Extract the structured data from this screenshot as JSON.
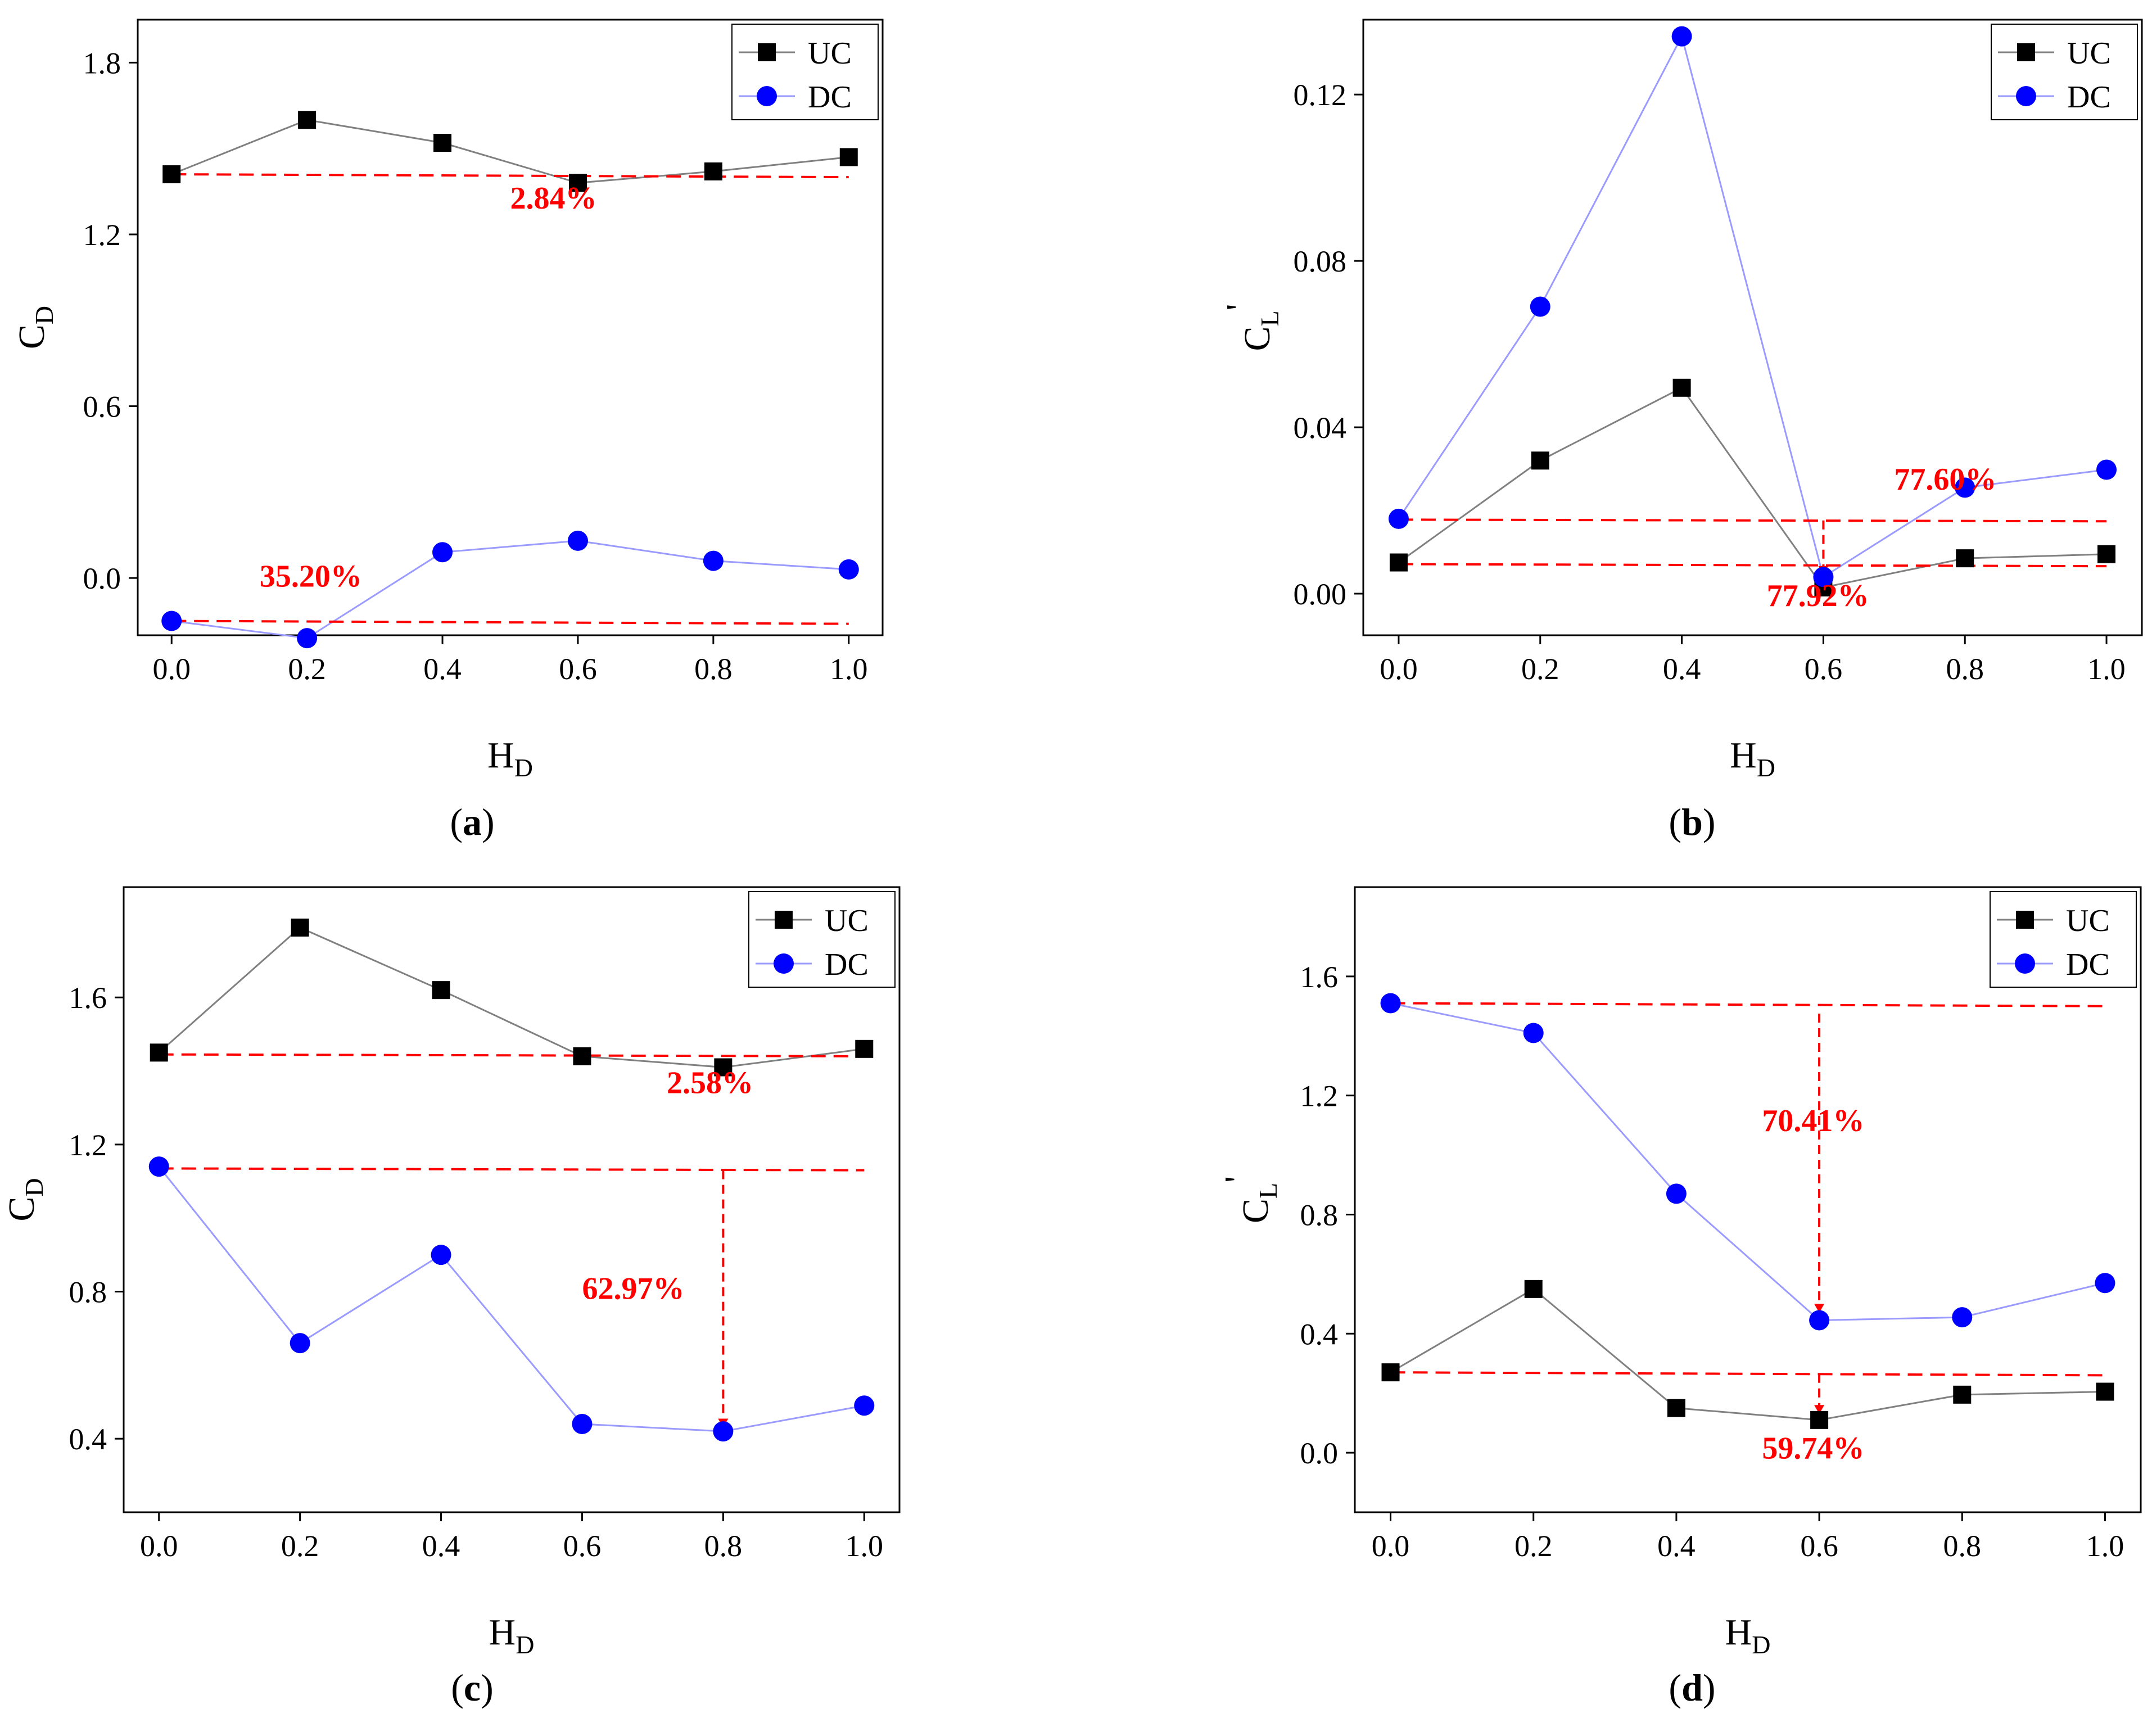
{
  "figure": {
    "panels": [
      "a",
      "b",
      "c",
      "d"
    ]
  },
  "colors": {
    "uc_series": "#000000",
    "uc_line": "#808080",
    "dc_series": "#0000ff",
    "dc_line": "#9a9aff",
    "annotation": "#ff0000"
  },
  "chart_data": [
    {
      "id": "a",
      "type": "line",
      "caption_letter": "a",
      "xlabel_main": "H",
      "xlabel_sub": "D",
      "ylabel_main": "C",
      "ylabel_sub": "D",
      "ylabel_prime": "",
      "xlim": [
        -0.05,
        1.05
      ],
      "ylim": [
        -0.2,
        1.95
      ],
      "x": [
        0.0,
        0.2,
        0.4,
        0.6,
        0.8,
        1.0
      ],
      "x_ticks": [
        0.0,
        0.2,
        0.4,
        0.6,
        0.8,
        1.0
      ],
      "x_tick_labels": [
        "0.0",
        "0.2",
        "0.4",
        "0.6",
        "0.8",
        "1.0"
      ],
      "y_ticks": [
        0.0,
        0.6,
        1.2,
        1.8
      ],
      "y_tick_labels": [
        "0.0",
        "0.6",
        "1.2",
        "1.8"
      ],
      "legend_position": "top-right",
      "series": [
        {
          "name": "UC",
          "marker": "square",
          "values": [
            1.41,
            1.6,
            1.52,
            1.38,
            1.42,
            1.47
          ]
        },
        {
          "name": "DC",
          "marker": "circle",
          "values": [
            -0.15,
            -0.21,
            0.09,
            0.13,
            0.06,
            0.03
          ]
        }
      ],
      "reference_lines": [
        {
          "from": [
            0.0,
            1.41
          ],
          "to": [
            1.0,
            1.4
          ]
        },
        {
          "from": [
            0.0,
            -0.15
          ],
          "to": [
            1.0,
            -0.16
          ]
        }
      ],
      "drop_lines": [],
      "annotations": [
        {
          "text": "2.84%",
          "x": 0.5,
          "y": 1.29
        },
        {
          "text": "35.20%",
          "x": 0.13,
          "y": -0.03
        }
      ]
    },
    {
      "id": "b",
      "type": "line",
      "caption_letter": "b",
      "xlabel_main": "H",
      "xlabel_sub": "D",
      "ylabel_main": "C",
      "ylabel_sub": "L",
      "ylabel_prime": "'",
      "xlim": [
        -0.05,
        1.05
      ],
      "ylim": [
        -0.01,
        0.138
      ],
      "x": [
        0.0,
        0.2,
        0.4,
        0.6,
        0.8,
        1.0
      ],
      "x_ticks": [
        0.0,
        0.2,
        0.4,
        0.6,
        0.8,
        1.0
      ],
      "x_tick_labels": [
        "0.0",
        "0.2",
        "0.4",
        "0.6",
        "0.8",
        "1.0"
      ],
      "y_ticks": [
        0.0,
        0.04,
        0.08,
        0.12
      ],
      "y_tick_labels": [
        "0.00",
        "0.04",
        "0.08",
        "0.12"
      ],
      "legend_position": "top-right",
      "series": [
        {
          "name": "UC",
          "marker": "square",
          "values": [
            0.0075,
            0.032,
            0.0495,
            0.0015,
            0.0085,
            0.0095
          ]
        },
        {
          "name": "DC",
          "marker": "circle",
          "values": [
            0.018,
            0.069,
            0.134,
            0.004,
            0.0255,
            0.0298
          ]
        }
      ],
      "reference_lines": [
        {
          "from": [
            0.0,
            0.0178
          ],
          "to": [
            1.0,
            0.0174
          ]
        },
        {
          "from": [
            0.0,
            0.0071
          ],
          "to": [
            1.0,
            0.0066
          ]
        }
      ],
      "drop_lines": [
        {
          "from": [
            0.6,
            0.0176
          ],
          "to": [
            0.6,
            0.0045
          ]
        }
      ],
      "annotations": [
        {
          "text": "77.60%",
          "x": 0.7,
          "y": 0.025
        },
        {
          "text": "77.92%",
          "x": 0.52,
          "y": -0.003
        }
      ]
    },
    {
      "id": "c",
      "type": "line",
      "caption_letter": "c",
      "xlabel_main": "H",
      "xlabel_sub": "D",
      "ylabel_main": "C",
      "ylabel_sub": "D",
      "ylabel_prime": "",
      "xlim": [
        -0.05,
        1.05
      ],
      "ylim": [
        0.2,
        1.9
      ],
      "x": [
        0.0,
        0.2,
        0.4,
        0.6,
        0.8,
        1.0
      ],
      "x_ticks": [
        0.0,
        0.2,
        0.4,
        0.6,
        0.8,
        1.0
      ],
      "x_tick_labels": [
        "0.0",
        "0.2",
        "0.4",
        "0.6",
        "0.8",
        "1.0"
      ],
      "y_ticks": [
        0.4,
        0.8,
        1.2,
        1.6
      ],
      "y_tick_labels": [
        "0.4",
        "0.8",
        "1.2",
        "1.6"
      ],
      "legend_position": "top-right",
      "series": [
        {
          "name": "UC",
          "marker": "square",
          "values": [
            1.45,
            1.79,
            1.62,
            1.44,
            1.41,
            1.46
          ]
        },
        {
          "name": "DC",
          "marker": "circle",
          "values": [
            1.14,
            0.66,
            0.9,
            0.44,
            0.42,
            0.49
          ]
        }
      ],
      "reference_lines": [
        {
          "from": [
            0.0,
            1.445
          ],
          "to": [
            1.0,
            1.44
          ]
        },
        {
          "from": [
            0.0,
            1.135
          ],
          "to": [
            1.0,
            1.13
          ]
        }
      ],
      "drop_lines": [
        {
          "from": [
            0.8,
            1.13
          ],
          "to": [
            0.8,
            0.43
          ]
        }
      ],
      "annotations": [
        {
          "text": "2.58%",
          "x": 0.72,
          "y": 1.34
        },
        {
          "text": "62.97%",
          "x": 0.6,
          "y": 0.78
        }
      ]
    },
    {
      "id": "d",
      "type": "line",
      "caption_letter": "d",
      "xlabel_main": "H",
      "xlabel_sub": "D",
      "ylabel_main": "C",
      "ylabel_sub": "L",
      "ylabel_prime": "'",
      "xlim": [
        -0.05,
        1.05
      ],
      "ylim": [
        -0.2,
        1.9
      ],
      "x": [
        0.0,
        0.2,
        0.4,
        0.6,
        0.8,
        1.0
      ],
      "x_ticks": [
        0.0,
        0.2,
        0.4,
        0.6,
        0.8,
        1.0
      ],
      "x_tick_labels": [
        "0.0",
        "0.2",
        "0.4",
        "0.6",
        "0.8",
        "1.0"
      ],
      "y_ticks": [
        0.0,
        0.4,
        0.8,
        1.2,
        1.6
      ],
      "y_tick_labels": [
        "0.0",
        "0.4",
        "0.8",
        "1.2",
        "1.6"
      ],
      "legend_position": "top-right",
      "series": [
        {
          "name": "UC",
          "marker": "square",
          "values": [
            0.27,
            0.55,
            0.15,
            0.11,
            0.195,
            0.205
          ]
        },
        {
          "name": "DC",
          "marker": "circle",
          "values": [
            1.51,
            1.41,
            0.87,
            0.445,
            0.455,
            0.57
          ]
        }
      ],
      "reference_lines": [
        {
          "from": [
            0.0,
            1.51
          ],
          "to": [
            1.0,
            1.5
          ]
        },
        {
          "from": [
            0.0,
            0.27
          ],
          "to": [
            1.0,
            0.26
          ]
        }
      ],
      "drop_lines": [
        {
          "from": [
            0.6,
            1.475
          ],
          "to": [
            0.6,
            0.47
          ]
        },
        {
          "from": [
            0.6,
            0.265
          ],
          "to": [
            0.6,
            0.13
          ]
        }
      ],
      "annotations": [
        {
          "text": "70.41%",
          "x": 0.52,
          "y": 1.08
        },
        {
          "text": "59.74%",
          "x": 0.52,
          "y": -0.02
        }
      ]
    }
  ]
}
